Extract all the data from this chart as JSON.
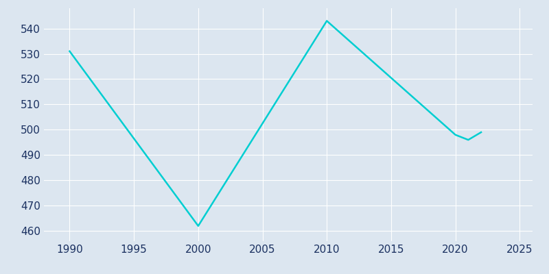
{
  "years": [
    1990,
    2000,
    2010,
    2020,
    2021,
    2022
  ],
  "population": [
    531,
    462,
    543,
    498,
    496,
    499
  ],
  "line_color": "#00CED1",
  "background_color": "#dce6f0",
  "plot_bg_color": "#dce6f0",
  "grid_color": "#ffffff",
  "text_color": "#1a3060",
  "xlim": [
    1988,
    2026
  ],
  "ylim": [
    456,
    548
  ],
  "yticks": [
    460,
    470,
    480,
    490,
    500,
    510,
    520,
    530,
    540
  ],
  "xticks": [
    1990,
    1995,
    2000,
    2005,
    2010,
    2015,
    2020,
    2025
  ],
  "linewidth": 1.8,
  "tick_fontsize": 11
}
